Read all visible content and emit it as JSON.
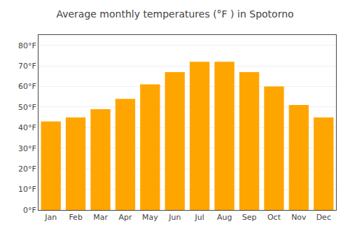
{
  "chart_data": {
    "type": "bar",
    "title": "Average monthly temperatures (°F ) in Spotorno",
    "categories": [
      "Jan",
      "Feb",
      "Mar",
      "Apr",
      "May",
      "Jun",
      "Jul",
      "Aug",
      "Sep",
      "Oct",
      "Nov",
      "Dec"
    ],
    "values": [
      43,
      45,
      49,
      54,
      61,
      67,
      72,
      72,
      67,
      60,
      51,
      45
    ],
    "color": "#FFA500",
    "ylim": [
      0,
      85
    ],
    "yticks": [
      {
        "value": 0,
        "label": "0°F"
      },
      {
        "value": 10,
        "label": "10°F"
      },
      {
        "value": 20,
        "label": "20°F"
      },
      {
        "value": 30,
        "label": "30°F"
      },
      {
        "value": 40,
        "label": "40°F"
      },
      {
        "value": 50,
        "label": "50°F"
      },
      {
        "value": 60,
        "label": "60°F"
      },
      {
        "value": 70,
        "label": "70°F"
      },
      {
        "value": 80,
        "label": "80°F"
      }
    ],
    "grid": true
  }
}
